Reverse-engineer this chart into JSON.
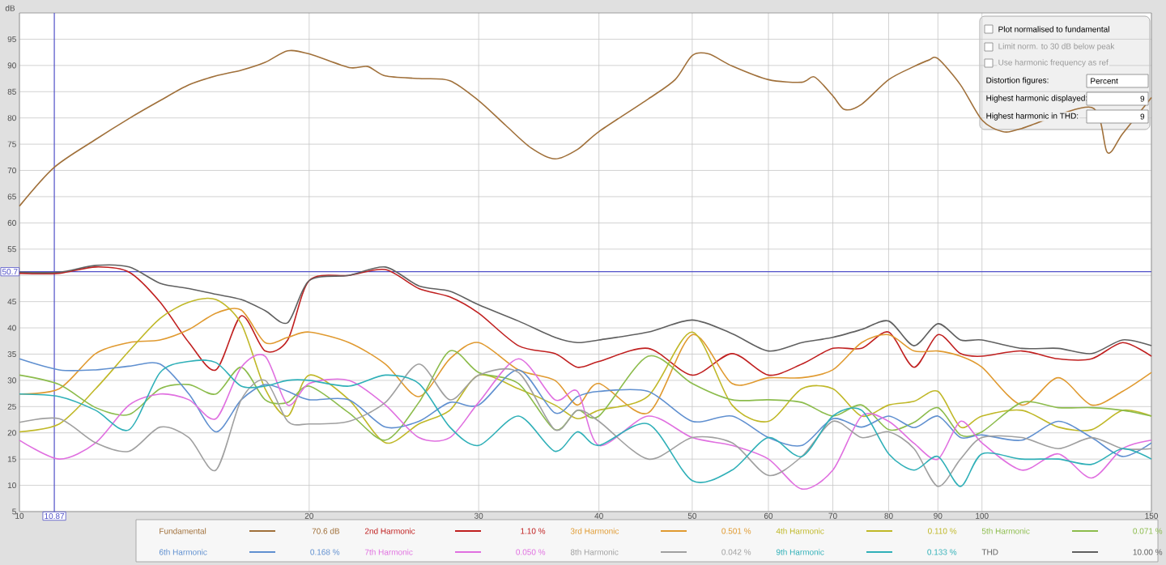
{
  "chart_data": {
    "type": "line",
    "ylabel": "dB",
    "log": "x",
    "grid": true,
    "legend": "bottom",
    "xlim": [
      10,
      150
    ],
    "ylim": [
      5,
      100
    ],
    "xticks": [
      10,
      20,
      30,
      40,
      50,
      60,
      70,
      80,
      90,
      100,
      150
    ],
    "yticks": [
      5,
      10,
      15,
      20,
      25,
      30,
      35,
      40,
      45,
      {
        "value": 50,
        "label": null
      },
      55,
      60,
      65,
      70,
      75,
      80,
      85,
      90,
      95
    ],
    "x": [
      10,
      11,
      12,
      13,
      14,
      15,
      16,
      17,
      18,
      19,
      20,
      22,
      24,
      26,
      28,
      30,
      33,
      36,
      38,
      40,
      45,
      50,
      55,
      60,
      65,
      70,
      75,
      80,
      85,
      90,
      95,
      100,
      110,
      120,
      130,
      140,
      150
    ],
    "series": [
      {
        "name": "Fundamental",
        "color": "#a0703a",
        "x": [
          10,
          10.87,
          12,
          13,
          14,
          15,
          16,
          17,
          18,
          19,
          20,
          22,
          23,
          24,
          26,
          28,
          30,
          32,
          34,
          36,
          38,
          40,
          45,
          48,
          50,
          52,
          55,
          60,
          65,
          67,
          70,
          72,
          75,
          80,
          85,
          88,
          90,
          95,
          100,
          105,
          110,
          130,
          135,
          140,
          150
        ],
        "values": [
          63.2,
          70.6,
          75.9,
          79.9,
          83.3,
          86.3,
          88,
          89.1,
          90.6,
          92.8,
          92.2,
          89.6,
          89.8,
          88,
          87.5,
          87.1,
          83.3,
          78.6,
          74.3,
          72.2,
          74,
          77.4,
          83.6,
          87.3,
          91.9,
          92.2,
          89.9,
          87.3,
          86.8,
          87.8,
          84.2,
          81.6,
          82.6,
          87.3,
          89.8,
          91,
          91.3,
          86.3,
          79.6,
          77.4,
          78,
          82,
          73.4,
          77,
          83.9
        ]
      },
      {
        "name": "2nd Harmonic",
        "color": "#c02020",
        "values": [
          50.4,
          50.4,
          51.6,
          50.6,
          44.9,
          37.2,
          32,
          42.3,
          35.6,
          37.7,
          49,
          50,
          51.1,
          47.5,
          45.9,
          42.8,
          36.6,
          35.1,
          32.5,
          33.6,
          36.1,
          31,
          35.1,
          31,
          33.1,
          36.1,
          36.1,
          39.2,
          32.5,
          38.7,
          35.1,
          34.6,
          35.6,
          34.1,
          34.1,
          37.2,
          34.6
        ]
      },
      {
        "name": "3rd Harmonic",
        "color": "#e09a30",
        "values": [
          27.4,
          28.4,
          35.1,
          37.2,
          37.7,
          39.7,
          42.8,
          43.4,
          37.2,
          38.2,
          39.2,
          37.2,
          33.1,
          26.9,
          34.1,
          37.2,
          32,
          30,
          25.3,
          29.4,
          23.8,
          38.7,
          29.4,
          30.5,
          30.5,
          32,
          37.2,
          38.7,
          35.6,
          35.6,
          34.6,
          32.5,
          25.3,
          30.5,
          25.3,
          27.9,
          31.5
        ]
      },
      {
        "name": "4th Harmonic",
        "color": "#c0b828",
        "values": [
          20.2,
          21.7,
          28.4,
          35.6,
          41.8,
          44.9,
          45.4,
          40.8,
          28.4,
          23.2,
          31,
          26.3,
          18.1,
          21.7,
          24.3,
          31,
          28.4,
          25.3,
          22.7,
          24.3,
          27,
          39.2,
          25.3,
          22.2,
          28.4,
          28.4,
          23.2,
          25.3,
          26,
          27.9,
          21.1,
          23.2,
          24.3,
          21.1,
          20.6,
          24.3,
          23.2
        ]
      },
      {
        "name": "5th Harmonic",
        "color": "#8cbc4c",
        "values": [
          31,
          29.2,
          24.8,
          23.5,
          28.4,
          29.2,
          27.4,
          32.5,
          26.3,
          25.8,
          28.9,
          23.8,
          18.6,
          25.8,
          35.6,
          31.5,
          29.4,
          20.6,
          24.3,
          23.2,
          34.6,
          29.4,
          26.3,
          26.3,
          25.8,
          23.2,
          25.3,
          20.6,
          22,
          24.8,
          19.6,
          20.2,
          25.8,
          24.8,
          24.8,
          24.3,
          23.2
        ]
      },
      {
        "name": "6th Harmonic",
        "color": "#6090d0",
        "values": [
          34.1,
          32,
          32,
          32.7,
          33.1,
          27.4,
          20.2,
          26.3,
          29.2,
          27.9,
          26.3,
          26.3,
          21.1,
          22.2,
          25.8,
          25.3,
          32,
          23.8,
          26.9,
          27.9,
          27.9,
          22.2,
          23.2,
          19.1,
          17.6,
          22.7,
          21.1,
          23.2,
          21,
          23.2,
          19.1,
          19.6,
          18.6,
          22.2,
          19.1,
          15.5,
          18.1
        ]
      },
      {
        "name": "7th Harmonic",
        "color": "#e070e0",
        "values": [
          18.6,
          15,
          18.1,
          25.3,
          27.4,
          26.3,
          22.7,
          32.5,
          34.6,
          25.3,
          29.4,
          30,
          25.3,
          19.1,
          19.1,
          25.8,
          34.1,
          26.3,
          27.9,
          17.6,
          23.2,
          19.1,
          17.6,
          15,
          9.3,
          12.9,
          23.2,
          22.2,
          18,
          15,
          22.2,
          18.1,
          12.9,
          16,
          11.4,
          17,
          18.6
        ]
      },
      {
        "name": "8th Harmonic",
        "color": "#a0a0a0",
        "values": [
          22,
          22.7,
          18.1,
          16.5,
          21.1,
          19.1,
          12.9,
          26.3,
          30,
          22.2,
          21.7,
          22.2,
          25.8,
          33.1,
          26.3,
          31,
          31.5,
          20.6,
          24.3,
          22.2,
          15,
          19.1,
          18.1,
          11.9,
          15.5,
          22.2,
          19.1,
          20.2,
          17,
          9.8,
          15,
          19.1,
          19.1,
          17,
          19.1,
          17,
          17
        ]
      },
      {
        "name": "9th Harmonic",
        "color": "#30b0b8",
        "values": [
          27.4,
          26.9,
          24.3,
          20.6,
          31.5,
          33.6,
          33.4,
          28.9,
          28.9,
          30,
          30,
          28.9,
          31,
          29.4,
          21.1,
          17.6,
          23.2,
          16.5,
          20.2,
          17.6,
          21.7,
          10.9,
          12.9,
          19.1,
          15.5,
          23.2,
          24.3,
          16,
          12.9,
          15.5,
          9.8,
          16,
          15,
          15,
          14,
          17,
          15
        ]
      },
      {
        "name": "THD",
        "color": "#606060",
        "values": [
          50.6,
          50.6,
          51.9,
          51.6,
          48.5,
          47.5,
          46.4,
          45.4,
          43.3,
          41,
          49,
          50,
          51.6,
          48,
          47,
          44.4,
          41.3,
          38.2,
          37.2,
          37.7,
          39.2,
          41.5,
          38.9,
          35.6,
          37.2,
          38.2,
          39.7,
          41.3,
          36.6,
          40.8,
          37.7,
          37.7,
          36.1,
          36.1,
          35.1,
          37.7,
          36.6
        ]
      }
    ],
    "ref_lines": [
      {
        "axis": "x",
        "value": 10.87,
        "label": "10.87",
        "color": "#5050c8"
      },
      {
        "axis": "y",
        "value": 50.7,
        "label": "50.7",
        "color": "#5050c8"
      }
    ],
    "annotations": [
      "70.6 dB",
      "1.10 %",
      "0.501 %",
      "0.110 %",
      "0.071 %",
      "0.168 %",
      "0.050 %",
      "0.042 %",
      "0.133 %",
      "10.00 %",
      "Plot normalised to fundamental",
      "Limit norm. to 30 dB below peak",
      "Use harmonic frequency as ref",
      "Distortion figures:",
      "Percent",
      "Highest harmonic displayed:",
      "9",
      "Highest harmonic in THD:",
      "9"
    ]
  }
}
